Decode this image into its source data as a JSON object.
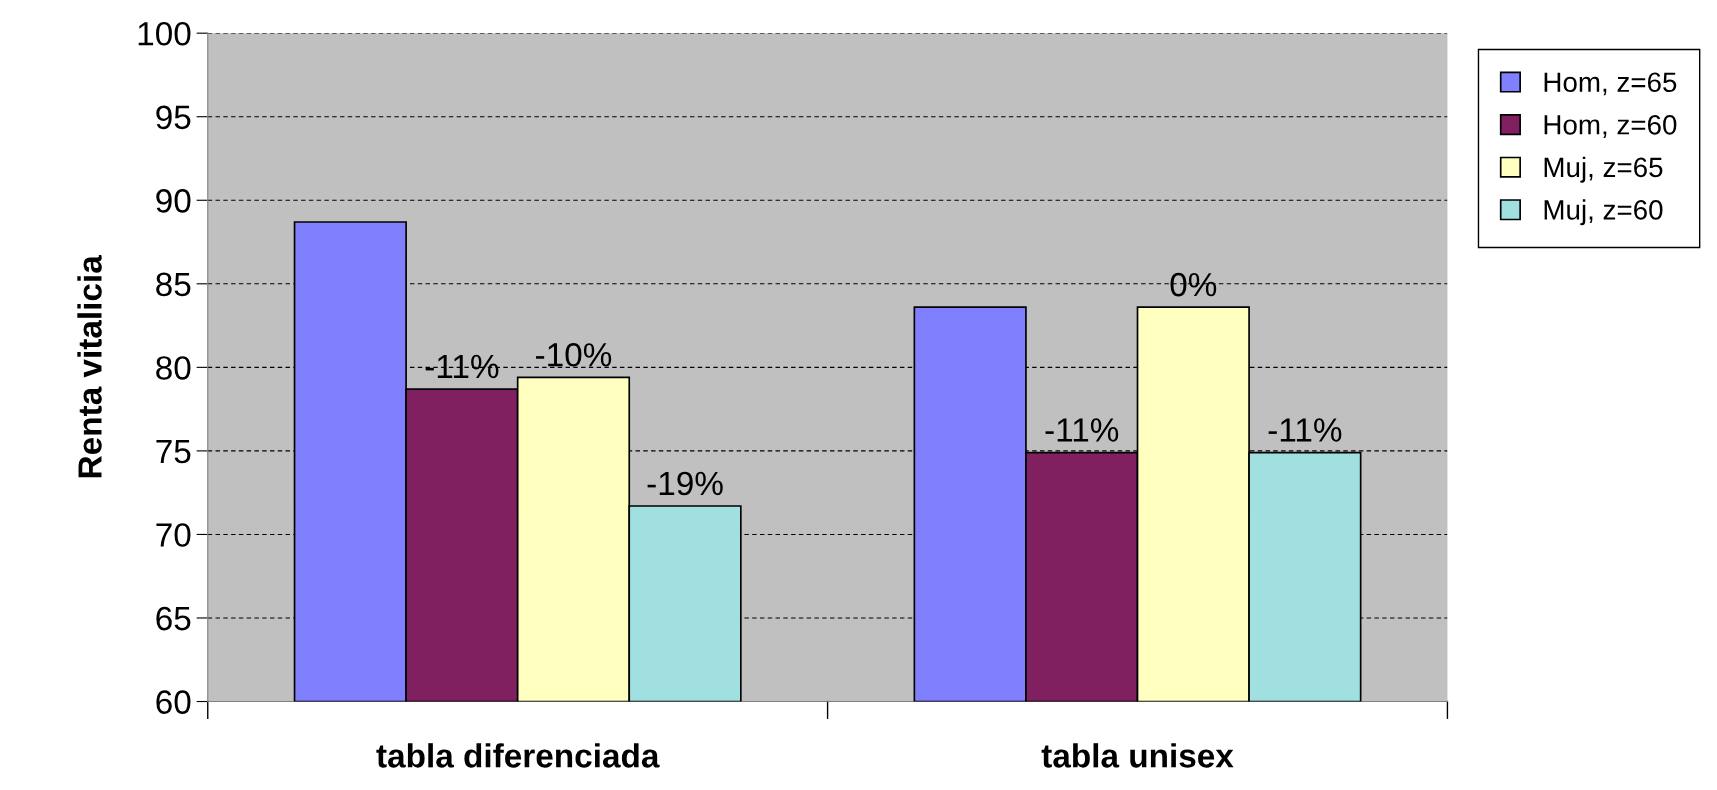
{
  "chart_data": {
    "type": "bar",
    "ylabel": "Renta vitalicia",
    "categories": [
      "tabla diferenciada",
      "tabla unisex"
    ],
    "series": [
      {
        "name": "Hom, z=65",
        "color": "#8080ff",
        "values": [
          88.7,
          83.6
        ]
      },
      {
        "name": "Hom, z=60",
        "color": "#802060",
        "values": [
          78.7,
          74.9
        ]
      },
      {
        "name": "Muj, z=65",
        "color": "#ffffc0",
        "values": [
          79.4,
          83.6
        ]
      },
      {
        "name": "Muj, z=60",
        "color": "#a0e0e0",
        "values": [
          71.7,
          74.9
        ]
      }
    ],
    "annotations": [
      "-11%",
      "-10%",
      "-19%",
      "-11%",
      "0%",
      "-11%"
    ],
    "ylim": [
      60,
      100
    ],
    "yticks": [
      60,
      65,
      70,
      75,
      80,
      85,
      90,
      95,
      100
    ],
    "grid": "y",
    "legend": "top right"
  }
}
